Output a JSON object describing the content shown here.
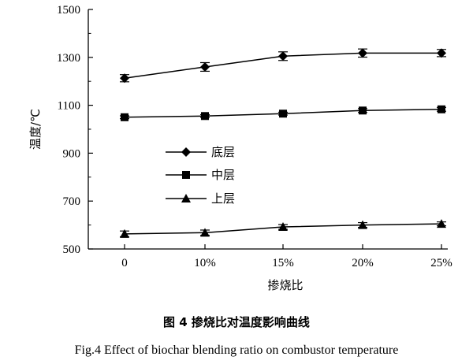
{
  "figure": {
    "caption_cn": "图 4   掺烧比对温度影响曲线",
    "caption_en": "Fig.4    Effect of biochar blending ratio on combustor temperature"
  },
  "chart_data": {
    "type": "line",
    "categories": [
      "0",
      "10%",
      "15%",
      "20%",
      "25%"
    ],
    "xlabel": "掺烧比",
    "ylabel": "温度/℃",
    "ylim": [
      500,
      1500
    ],
    "yticks": [
      "500",
      "700",
      "900",
      "1100",
      "1300",
      "1500"
    ],
    "grid": false,
    "legend_position": "center-left",
    "series": [
      {
        "name": "底层",
        "marker": "diamond",
        "values": [
          1213,
          1260,
          1305,
          1318,
          1318
        ],
        "errors": [
          15,
          18,
          18,
          17,
          15
        ]
      },
      {
        "name": "中层",
        "marker": "square",
        "values": [
          1050,
          1055,
          1065,
          1078,
          1083
        ],
        "errors": [
          6,
          6,
          6,
          8,
          8
        ]
      },
      {
        "name": "上层",
        "marker": "triangle",
        "values": [
          563,
          568,
          592,
          600,
          605
        ],
        "errors": [
          12,
          11,
          10,
          10,
          8
        ]
      }
    ]
  }
}
